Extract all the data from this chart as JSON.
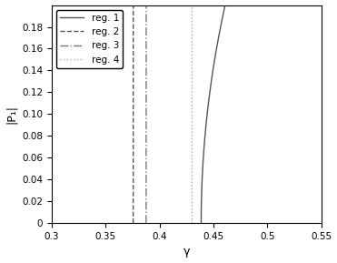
{
  "title": "",
  "xlabel": "γ",
  "ylabel": "|P₁|",
  "xlim": [
    0.3,
    0.55
  ],
  "ylim": [
    0.0,
    0.2
  ],
  "xticks": [
    0.3,
    0.35,
    0.4,
    0.45,
    0.5,
    0.55
  ],
  "yticks": [
    0.0,
    0.02,
    0.04,
    0.06,
    0.08,
    0.1,
    0.12,
    0.14,
    0.16,
    0.18
  ],
  "registers": [
    {
      "label": "reg. 1",
      "linestyle": "solid",
      "color": "#555555",
      "gamma0": 0.4385,
      "slope": 1.8
    },
    {
      "label": "reg. 2",
      "linestyle": "dashed",
      "color": "#555555",
      "gamma0": 0.3755,
      "slope": 600.0
    },
    {
      "label": "reg. 3",
      "linestyle": "dashdot",
      "color": "#777777",
      "gamma0": 0.3875,
      "slope": 600.0
    },
    {
      "label": "reg. 4",
      "linestyle": "dotted",
      "color": "#aaaaaa",
      "gamma0": 0.43,
      "slope": 600.0
    }
  ],
  "figsize": [
    3.71,
    2.89
  ],
  "dpi": 100,
  "legend_loc": "upper left",
  "legend_fontsize": 7.5,
  "tick_labelsize": 7.5,
  "axis_labelsize": 9
}
